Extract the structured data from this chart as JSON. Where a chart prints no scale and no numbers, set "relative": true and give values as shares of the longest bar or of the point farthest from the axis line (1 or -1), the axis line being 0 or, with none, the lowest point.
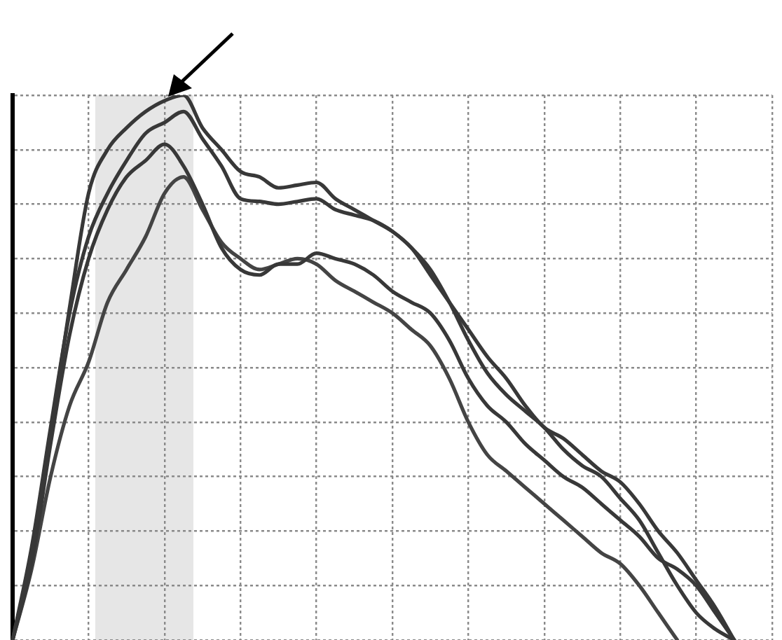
{
  "chart_data": {
    "type": "line",
    "relative": true,
    "grid": true,
    "marker": "none",
    "line_style": "solid",
    "categories": [
      null,
      null,
      null,
      null,
      null,
      null,
      null,
      null,
      null,
      null,
      null,
      null,
      null,
      null,
      null,
      null,
      null,
      null,
      null,
      null,
      null,
      null,
      null,
      null,
      null,
      null,
      null,
      null,
      null,
      null,
      null,
      null,
      null,
      null,
      null,
      null,
      null,
      null,
      null,
      null,
      null
    ],
    "series": [
      {
        "color": "#383838",
        "values": [
          0,
          0.16,
          0.38,
          0.61,
          0.82,
          0.9,
          0.94,
          0.97,
          0.99,
          1.0,
          0.94,
          0.9,
          0.86,
          0.85,
          0.83,
          0.835,
          0.84,
          0.81,
          0.79,
          0.77,
          0.75,
          0.72,
          0.67,
          0.62,
          0.57,
          0.52,
          0.48,
          0.43,
          0.39,
          0.37,
          0.34,
          0.31,
          0.29,
          0.25,
          0.2,
          0.16,
          0.11,
          0.06,
          0,
          null,
          null
        ]
      },
      {
        "color": "#383838",
        "values": [
          0,
          0.17,
          0.39,
          0.6,
          0.74,
          0.82,
          0.88,
          0.93,
          0.95,
          0.97,
          0.92,
          0.87,
          0.81,
          0.805,
          0.8,
          0.805,
          0.81,
          0.79,
          0.78,
          0.77,
          0.75,
          0.72,
          0.68,
          0.62,
          0.55,
          0.49,
          0.45,
          0.42,
          0.39,
          0.35,
          0.32,
          0.3,
          0.26,
          0.22,
          0.16,
          0.1,
          0.05,
          0.02,
          0,
          null,
          null
        ]
      },
      {
        "color": "#383838",
        "values": [
          0,
          0.14,
          0.36,
          0.56,
          0.7,
          0.79,
          0.85,
          0.88,
          0.91,
          0.87,
          0.8,
          0.72,
          0.68,
          0.67,
          0.69,
          0.69,
          0.71,
          0.7,
          0.69,
          0.67,
          0.64,
          0.62,
          0.6,
          0.55,
          0.48,
          0.43,
          0.4,
          0.36,
          0.33,
          0.3,
          0.28,
          0.25,
          0.22,
          0.19,
          0.15,
          0.13,
          0.1,
          0.05,
          0,
          null,
          null
        ]
      },
      {
        "color": "#444444",
        "values": [
          0,
          0.13,
          0.3,
          0.43,
          0.51,
          0.62,
          0.68,
          0.74,
          0.82,
          0.85,
          0.79,
          0.73,
          0.7,
          0.68,
          0.69,
          0.7,
          0.69,
          0.66,
          0.64,
          0.62,
          0.6,
          0.57,
          0.54,
          0.48,
          0.4,
          0.34,
          0.31,
          0.28,
          0.25,
          0.22,
          0.19,
          0.16,
          0.14,
          0.1,
          0.05,
          0,
          null,
          null,
          null,
          null,
          null
        ]
      }
    ]
  }
}
